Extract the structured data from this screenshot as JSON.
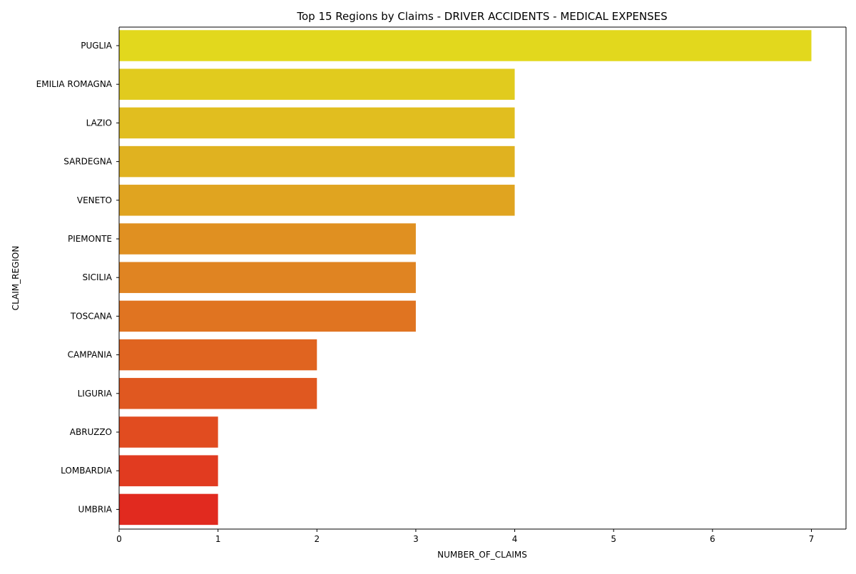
{
  "chart_data": {
    "type": "bar",
    "orientation": "horizontal",
    "title": "Top 15 Regions by Claims - DRIVER ACCIDENTS - MEDICAL EXPENSES",
    "xlabel": "NUMBER_OF_CLAIMS",
    "ylabel": "CLAIM_REGION",
    "categories": [
      "PUGLIA",
      "EMILIA ROMAGNA",
      "LAZIO",
      "SARDEGNA",
      "VENETO",
      "PIEMONTE",
      "SICILIA",
      "TOSCANA",
      "CAMPANIA",
      "LIGURIA",
      "ABRUZZO",
      "LOMBARDIA",
      "UMBRIA"
    ],
    "values": [
      7,
      4,
      4,
      4,
      4,
      3,
      3,
      3,
      2,
      2,
      1,
      1,
      1
    ],
    "xlim": [
      0,
      7.35
    ],
    "xticks": [
      0,
      1,
      2,
      3,
      4,
      5,
      6,
      7
    ],
    "grid": false,
    "legend": "none",
    "colors": [
      "#e2d81d",
      "#e1cb1e",
      "#e1be1f",
      "#e0b220",
      "#e0a420",
      "#e09021",
      "#e08422",
      "#e07421",
      "#e06420",
      "#e05820",
      "#e14c20",
      "#e13b20",
      "#e12a1f"
    ]
  }
}
